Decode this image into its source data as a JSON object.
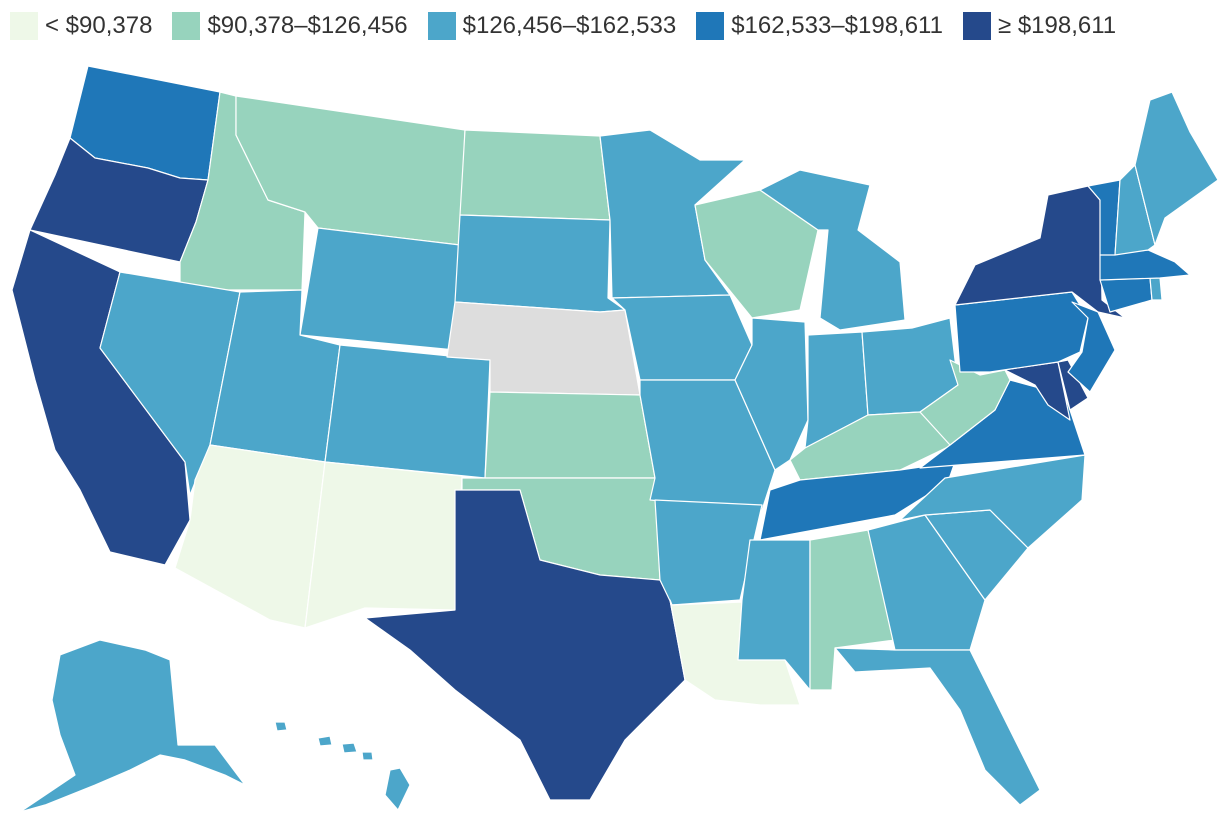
{
  "legend": [
    {
      "label": "< $90,378",
      "color": "#eef8e8"
    },
    {
      "label": "$90,378–$126,456",
      "color": "#97d3bd"
    },
    {
      "label": "$126,456–$162,533",
      "color": "#4ca6ca"
    },
    {
      "label": "$162,533–$198,611",
      "color": "#1f77b8"
    },
    {
      "label": "≥ $198,611",
      "color": "#25498b"
    }
  ],
  "no_data_color": "#dddddd",
  "states": {
    "WA": 3,
    "OR": 4,
    "CA": 4,
    "ID": 1,
    "NV": 2,
    "MT": 1,
    "WY": 2,
    "UT": 2,
    "AZ": 0,
    "CO": 2,
    "NM": 0,
    "ND": 1,
    "SD": 2,
    "NE": null,
    "KS": 1,
    "OK": 1,
    "TX": 4,
    "MN": 2,
    "IA": 2,
    "MO": 2,
    "AR": 2,
    "LA": 0,
    "WI": 1,
    "IL": 2,
    "MI": 2,
    "IN": 2,
    "OH": 2,
    "KY": 1,
    "TN": 3,
    "MS": 2,
    "AL": 1,
    "GA": 2,
    "FL": 2,
    "SC": 2,
    "NC": 2,
    "VA": 3,
    "WV": 1,
    "MD": 4,
    "DE": 4,
    "PA": 3,
    "NJ": 3,
    "NY": 4,
    "CT": 3,
    "RI": 2,
    "MA": 3,
    "VT": 3,
    "NH": 2,
    "ME": 2,
    "AK": 2,
    "HI": 2
  }
}
